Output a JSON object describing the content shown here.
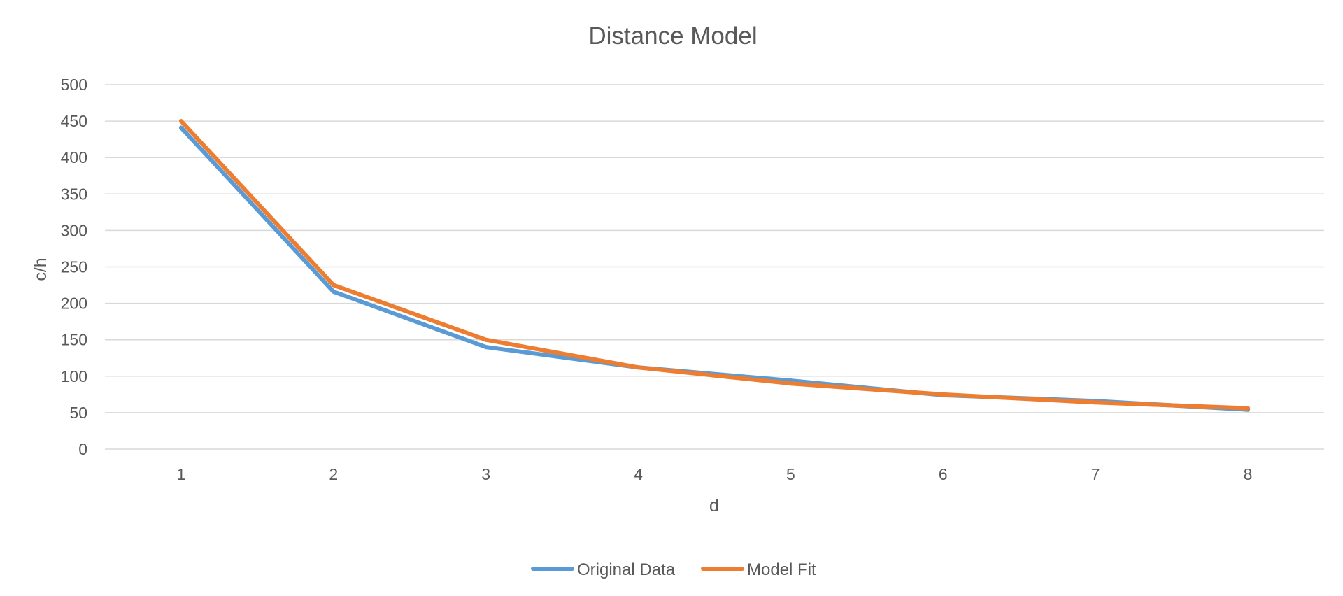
{
  "chart_data": {
    "type": "line",
    "title": "Distance Model",
    "xlabel": "d",
    "ylabel": "c/h",
    "categories": [
      "1",
      "2",
      "3",
      "4",
      "5",
      "6",
      "7",
      "8"
    ],
    "y_ticks": [
      "0",
      "50",
      "100",
      "150",
      "200",
      "250",
      "300",
      "350",
      "400",
      "450",
      "500"
    ],
    "ylim": [
      0,
      500
    ],
    "grid": true,
    "legend_position": "bottom",
    "series": [
      {
        "name": "Original Data",
        "color": "#5b9bd5",
        "values": [
          441,
          216,
          140,
          112,
          94,
          74,
          66,
          54
        ]
      },
      {
        "name": "Model Fit",
        "color": "#ed7d31",
        "values": [
          450,
          225,
          150,
          112,
          90,
          75,
          64,
          56
        ]
      }
    ]
  }
}
